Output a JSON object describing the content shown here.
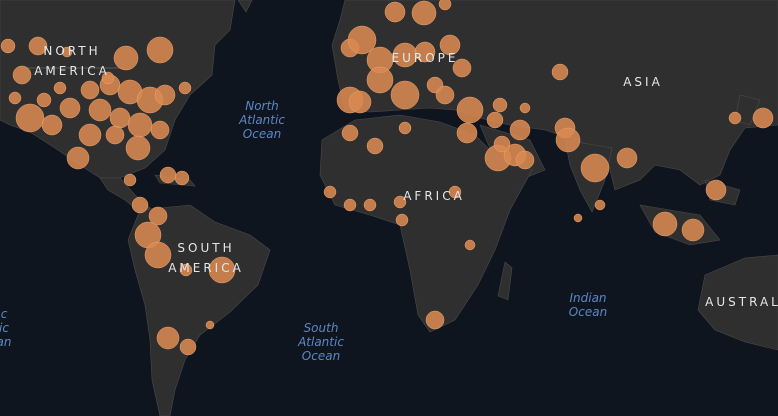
{
  "regions": [
    {
      "name": "north-america",
      "lines": [
        "NORTH",
        "AMERICA"
      ]
    },
    {
      "name": "europe",
      "lines": [
        "EUROPE"
      ]
    },
    {
      "name": "asia",
      "lines": [
        "ASIA"
      ]
    },
    {
      "name": "africa",
      "lines": [
        "AFRICA"
      ]
    },
    {
      "name": "south-america",
      "lines": [
        "SOUTH",
        "AMERICA"
      ]
    },
    {
      "name": "australia",
      "lines": [
        "AUSTRAL"
      ]
    }
  ],
  "oceans": [
    {
      "name": "north-atlantic",
      "lines": [
        "North",
        "Atlantic",
        "Ocean"
      ]
    },
    {
      "name": "south-atlantic",
      "lines": [
        "South",
        "Atlantic",
        "Ocean"
      ]
    },
    {
      "name": "indian",
      "lines": [
        "Indian",
        "Ocean"
      ]
    },
    {
      "name": "edge-ocean",
      "lines": [
        "c",
        "ic",
        "an"
      ]
    }
  ]
}
